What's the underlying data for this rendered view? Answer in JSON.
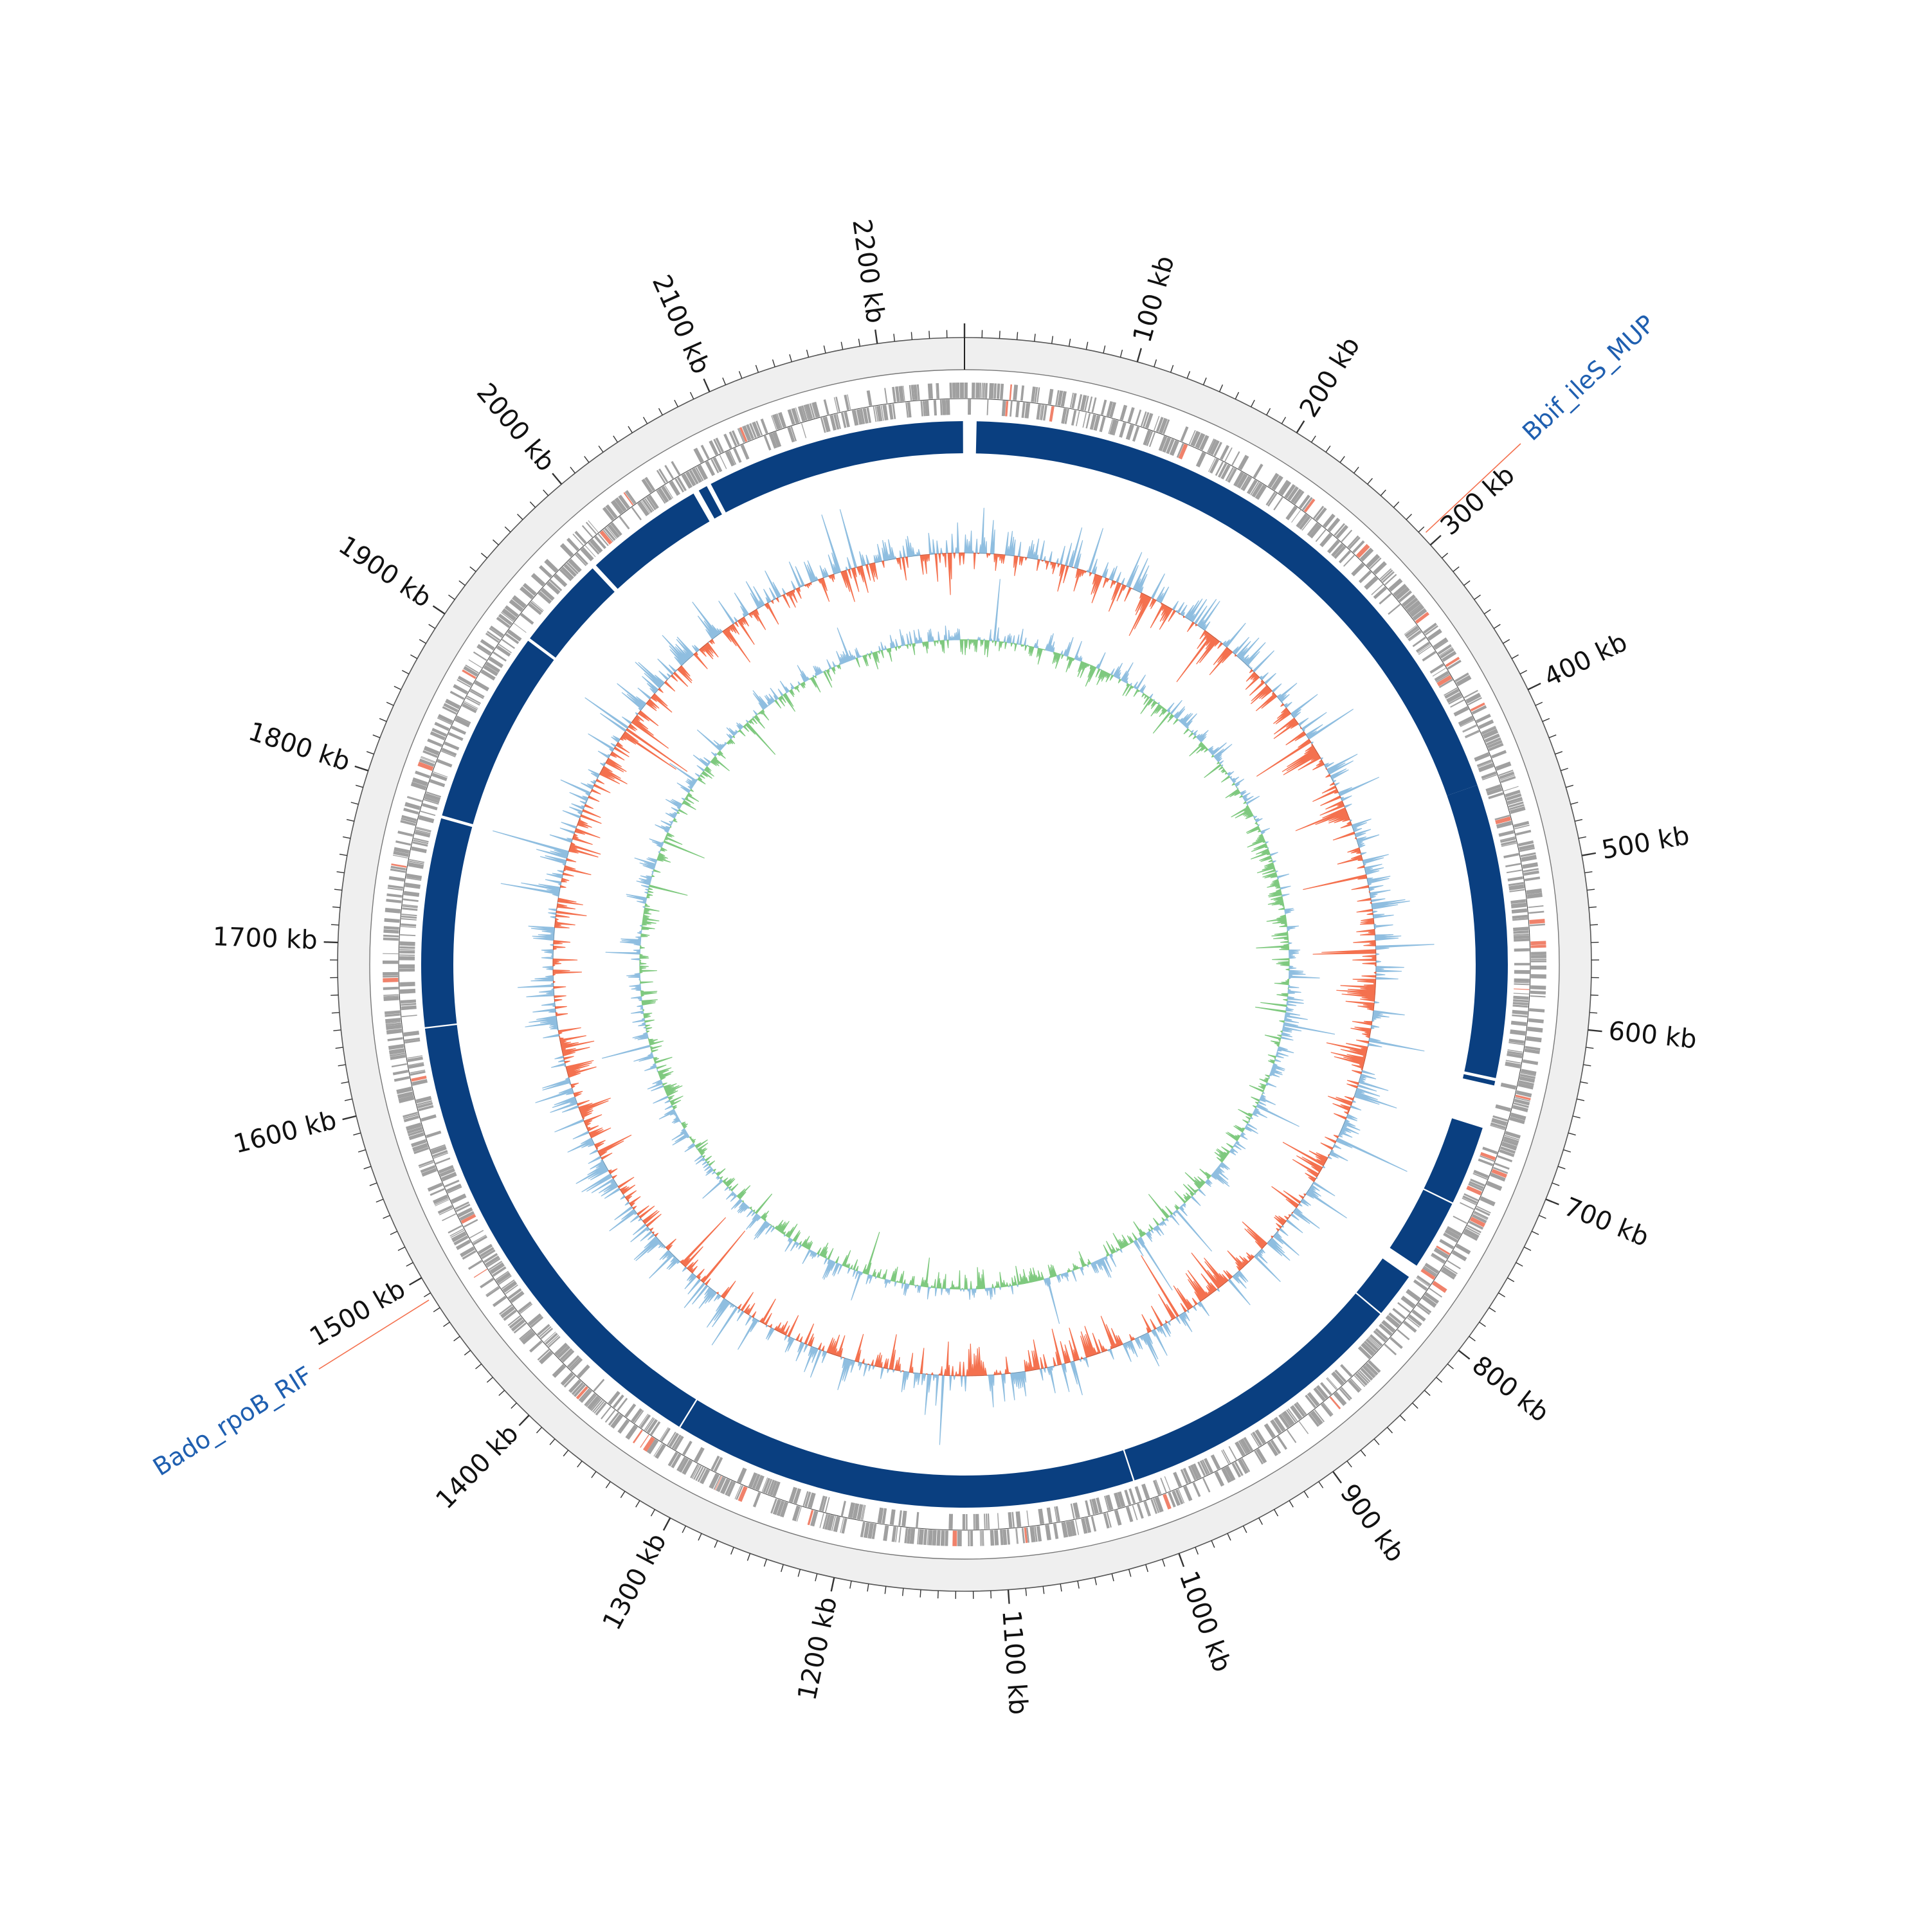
{
  "figure": {
    "type": "circular-genome-map",
    "genome_length_kb": 2250,
    "start_position_kb": 0,
    "direction": "clockwise"
  },
  "axis": {
    "tick_labels": [
      "100 kb",
      "200 kb",
      "300 kb",
      "400 kb",
      "500 kb",
      "600 kb",
      "700 kb",
      "800 kb",
      "900 kb",
      "1000 kb",
      "1100 kb",
      "1200 kb",
      "1300 kb",
      "1400 kb",
      "1500 kb",
      "1600 kb",
      "1700 kb",
      "1800 kb",
      "1900 kb",
      "2000 kb",
      "2100 kb",
      "2200 kb"
    ],
    "tick_positions_kb": [
      100,
      200,
      300,
      400,
      500,
      600,
      700,
      800,
      900,
      1000,
      1100,
      1200,
      1300,
      1400,
      1500,
      1600,
      1700,
      1800,
      1900,
      2000,
      2100,
      2200
    ],
    "minor_tick_step_kb": 10
  },
  "annotations": [
    {
      "label": "Bbif_ileS_MUP",
      "position_kb": 293,
      "color": "#1f5fb0"
    },
    {
      "label": "Bado_rpoB_RIF",
      "position_kb": 1487,
      "color": "#1f5fb0"
    }
  ],
  "tracks": {
    "outer_band_color": "#efefef",
    "gene_color": "#a0a0a0",
    "highlight_gene_color": "#f0826b",
    "contigs": {
      "color": "#0a3f80",
      "segments_kb": [
        [
          8,
          442
        ],
        [
          442,
          638
        ],
        [
          640,
          643
        ],
        [
          672,
          725
        ],
        [
          726,
          773
        ],
        [
          782,
          812
        ],
        [
          813,
          1011
        ],
        [
          1012,
          1322
        ],
        [
          1323,
          1645
        ],
        [
          1646,
          1785
        ],
        [
          1787,
          1916
        ],
        [
          1918,
          1980
        ],
        [
          1983,
          2063
        ],
        [
          2067,
          2073
        ],
        [
          2076,
          2249
        ]
      ]
    },
    "gc_content": {
      "baseline_color": "#111111",
      "above_color": "#8fbee0",
      "below_color": "#f4714f"
    },
    "gc_skew": {
      "positive_color": "#8fbee0",
      "negative_color": "#7fc97f"
    }
  }
}
